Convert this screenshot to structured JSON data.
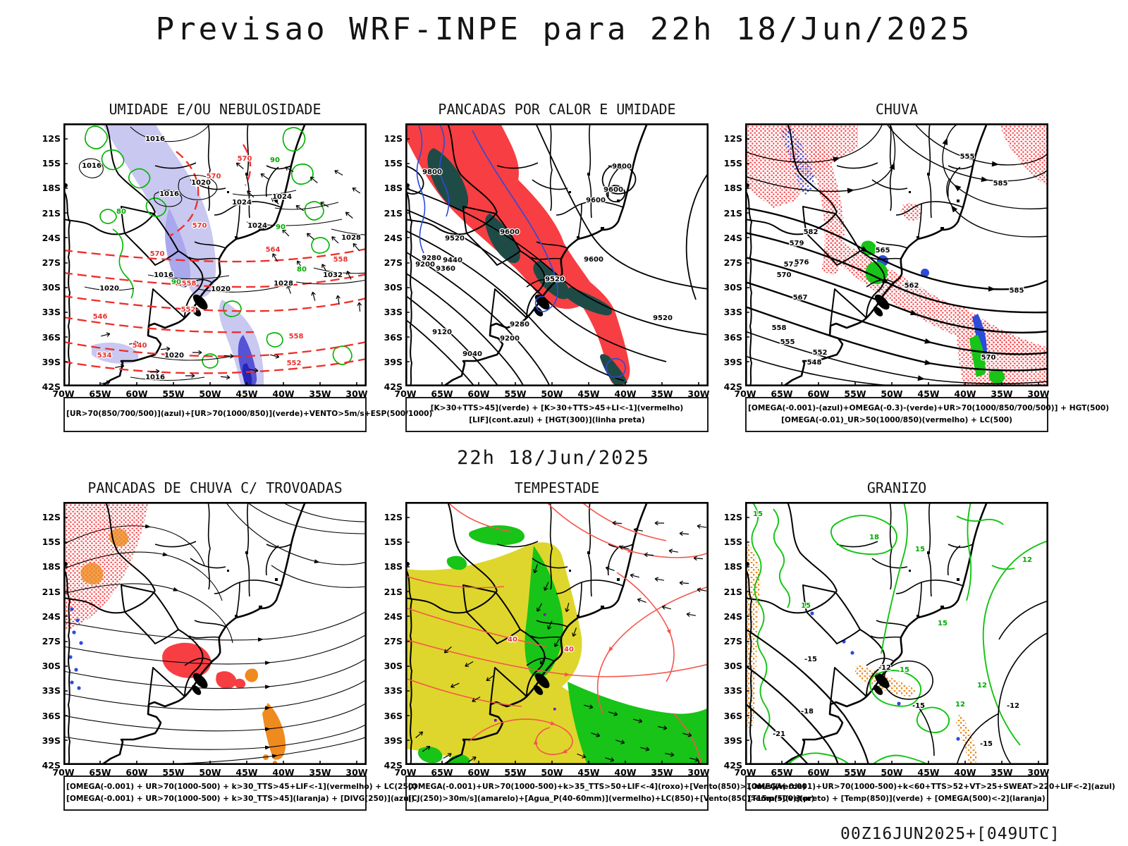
{
  "page": {
    "title": "Previsao WRF-INPE  para 22h 18/Jun/2025",
    "mid_caption": "22h 18/Jun/2025",
    "footer": "00Z16JUN2025+[049UTC]"
  },
  "axes": {
    "lat": [
      "12S",
      "15S",
      "18S",
      "21S",
      "24S",
      "27S",
      "30S",
      "33S",
      "36S",
      "39S",
      "42S"
    ],
    "lon": [
      "70W",
      "65W",
      "60W",
      "55W",
      "50W",
      "45W",
      "40W",
      "35W",
      "30W"
    ]
  },
  "colors": {
    "red_fill": "#f73e42",
    "dark_teal_fill": "#1f4b47",
    "green_line": "#00b400",
    "green_fill": "#17c417",
    "blue_line": "#2b4bdb",
    "lavender_fill": "#c9c8f1",
    "violet_fill": "#5553d6",
    "deep_blue_fill": "#2724b8",
    "yellow_fill": "#ded62c",
    "orange_fill": "#ee8a1e",
    "salmon_line": "#f4574d",
    "red_dashed_line": "#ef2d28",
    "purple_speck": "#8b00c4",
    "map_line": "#000000"
  },
  "panels": [
    {
      "id": "umidade",
      "title": "UMIDADE E/OU NEBULOSIDADE",
      "legend": [
        "[UR>70(850/700/500)](azul)+[UR>70(1000/850)](verde)+VENTO>5m/s+ESP(500/1000)"
      ]
    },
    {
      "id": "pancadas-calor",
      "title": "PANCADAS POR CALOR E UMIDADE",
      "legend": [
        "[K>30+TTS>45](verde) + [K>30+TTS>45+LI<-1](vermelho)",
        "[LIF](cont.azul) + [HGT(300)](linha preta)"
      ]
    },
    {
      "id": "chuva",
      "title": "CHUVA",
      "legend": [
        "[OMEGA(-0.001)-(azul)+OMEGA(-0.3)-(verde)+UR>70(1000/850/700/500)] + HGT(500)",
        "[OMEGA(-0.01)_UR>50(1000/850)(vermelho) + LC(500)"
      ]
    },
    {
      "id": "trovoadas",
      "title": "PANCADAS DE CHUVA C/ TROVOADAS",
      "legend": [
        "[OMEGA(-0.001) + UR>70(1000-500) + k>30_TTS>45+LIF<-1](vermelho) + LC(250)",
        "[OMEGA(-0.001) + UR>70(1000-500) + k>30_TTS>45](laranja) + [DIVG(250)](azul)"
      ]
    },
    {
      "id": "tempestade",
      "title": "TEMPESTADE",
      "legend": [
        "[OMEGA(-0.001)+UR>70(1000-500)+k>35_TTS>50+LIF<-4](roxo)+[Vento(850)>10m/s](verde)",
        "[CJ(250)>30m/s](amarelo)+[Agua_P(40-60mm)](vermelho)+LC(850)+[Vento(850)>15m/s](vetor)"
      ]
    },
    {
      "id": "granizo",
      "title": "GRANIZO",
      "legend": [
        "[OMEGA(-0.001)+UR>70(1000-500)+k<60+TTS>52+VT>25+SWEAT>220+LIF<-2](azul)",
        "[Temp(500)](preto) + [Temp(850)](verde) + [OMEGA(500)<-2](laranja)"
      ]
    }
  ],
  "map_labels": {
    "p1": [
      [
        130,
        25,
        "k",
        "1016"
      ],
      [
        40,
        63,
        "k",
        "1016"
      ],
      [
        195,
        87,
        "k",
        "1020"
      ],
      [
        150,
        103,
        "k",
        "1016"
      ],
      [
        253,
        115,
        "k",
        "1024"
      ],
      [
        310,
        107,
        "k",
        "1024"
      ],
      [
        275,
        148,
        "k",
        "1024"
      ],
      [
        408,
        165,
        "k",
        "1028"
      ],
      [
        382,
        218,
        "k",
        "1032"
      ],
      [
        142,
        218,
        "k",
        "1016"
      ],
      [
        223,
        238,
        "k",
        "1020"
      ],
      [
        312,
        230,
        "k",
        "1028"
      ],
      [
        65,
        237,
        "k",
        "1020"
      ],
      [
        157,
        332,
        "k",
        "1020"
      ],
      [
        130,
        363,
        "k",
        "1016"
      ],
      [
        193,
        148,
        "r",
        "570"
      ],
      [
        257,
        53,
        "r",
        "570"
      ],
      [
        213,
        78,
        "r",
        "570"
      ],
      [
        133,
        188,
        "r",
        "570"
      ],
      [
        297,
        182,
        "r",
        "564"
      ],
      [
        178,
        230,
        "r",
        "558"
      ],
      [
        393,
        196,
        "r",
        "558"
      ],
      [
        177,
        267,
        "r",
        "552"
      ],
      [
        52,
        277,
        "r",
        "546"
      ],
      [
        108,
        318,
        "r",
        "540"
      ],
      [
        58,
        332,
        "r",
        "534"
      ],
      [
        330,
        305,
        "r",
        "558"
      ],
      [
        327,
        343,
        "r",
        "552"
      ],
      [
        308,
        150,
        "g",
        "90"
      ],
      [
        82,
        128,
        "g",
        "80"
      ],
      [
        160,
        228,
        "g",
        "90"
      ],
      [
        338,
        210,
        "g",
        "80"
      ],
      [
        300,
        55,
        "g",
        "90"
      ]
    ],
    "p2": [
      [
        307,
        64,
        "k",
        "9800"
      ],
      [
        295,
        97,
        "k",
        "9600"
      ],
      [
        267,
        196,
        "k",
        "9600"
      ],
      [
        270,
        112,
        "k",
        "9600"
      ],
      [
        148,
        157,
        "k",
        "9600"
      ],
      [
        212,
        224,
        "k",
        "9520"
      ],
      [
        365,
        279,
        "k",
        "9520"
      ],
      [
        70,
        166,
        "k",
        "9520"
      ],
      [
        67,
        197,
        "k",
        "9440"
      ],
      [
        57,
        209,
        "k",
        "9360"
      ],
      [
        162,
        288,
        "k",
        "9280"
      ],
      [
        37,
        194,
        "k",
        "9280"
      ],
      [
        148,
        308,
        "k",
        "9200"
      ],
      [
        28,
        203,
        "k",
        "9200"
      ],
      [
        52,
        299,
        "k",
        "9120"
      ],
      [
        95,
        330,
        "k",
        "9040"
      ],
      [
        38,
        72,
        "k",
        "9800"
      ]
    ],
    "p3": [
      [
        315,
        50,
        "k",
        "555"
      ],
      [
        385,
        240,
        "k",
        "585"
      ],
      [
        93,
        157,
        "k",
        "582"
      ],
      [
        195,
        183,
        "k",
        "565"
      ],
      [
        236,
        233,
        "k",
        "562"
      ],
      [
        55,
        218,
        "k",
        "570"
      ],
      [
        65,
        203,
        "k",
        "573"
      ],
      [
        80,
        200,
        "k",
        "576"
      ],
      [
        73,
        173,
        "k",
        "579"
      ],
      [
        78,
        250,
        "k",
        "567"
      ],
      [
        48,
        293,
        "k",
        "558"
      ],
      [
        60,
        313,
        "k",
        "555"
      ],
      [
        106,
        328,
        "k",
        "552"
      ],
      [
        98,
        342,
        "k",
        "548"
      ],
      [
        345,
        335,
        "k",
        "570"
      ],
      [
        362,
        88,
        "k",
        "585"
      ]
    ],
    "p4": [],
    "p5": [
      [
        152,
        198,
        "r",
        "40"
      ],
      [
        232,
        212,
        "r",
        "40"
      ]
    ],
    "p6": [
      [
        183,
        53,
        "g",
        "18"
      ],
      [
        248,
        70,
        "g",
        "15"
      ],
      [
        400,
        85,
        "g",
        "12"
      ],
      [
        86,
        150,
        "g",
        "15"
      ],
      [
        280,
        175,
        "g",
        "15"
      ],
      [
        336,
        263,
        "g",
        "12"
      ],
      [
        305,
        290,
        "g",
        "12"
      ],
      [
        226,
        241,
        "g",
        "15"
      ],
      [
        18,
        20,
        "g",
        "15"
      ],
      [
        93,
        226,
        "k",
        "-15"
      ],
      [
        88,
        300,
        "k",
        "-18"
      ],
      [
        48,
        332,
        "k",
        "-21"
      ],
      [
        198,
        238,
        "k",
        "-12"
      ],
      [
        380,
        292,
        "k",
        "-12"
      ],
      [
        342,
        346,
        "k",
        "-15"
      ],
      [
        246,
        292,
        "k",
        "-15"
      ]
    ]
  }
}
